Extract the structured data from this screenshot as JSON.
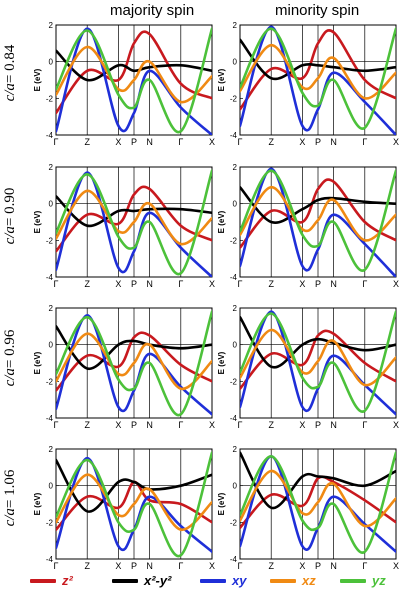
{
  "column_titles": [
    "majority spin",
    "minority spin"
  ],
  "row_labels": [
    {
      "prefix": "c/a",
      "value": "= 0.84"
    },
    {
      "prefix": "c/a",
      "value": "= 0.90"
    },
    {
      "prefix": "c/a",
      "value": "= 0.96"
    },
    {
      "prefix": "c/a",
      "value": "= 1.06"
    }
  ],
  "legend": [
    {
      "label": "z²",
      "color": "#c8191e"
    },
    {
      "label": "x²-y²",
      "color": "#000000"
    },
    {
      "label": "xy",
      "color": "#1f2fd8"
    },
    {
      "label": "xz",
      "color": "#f08a13"
    },
    {
      "label": "yz",
      "color": "#4cc13a"
    }
  ],
  "chart_data": {
    "type": "line",
    "title": "",
    "ylabel": "E (eV)",
    "ylim": [
      -4,
      2
    ],
    "yticks": [
      -4,
      -2,
      0,
      2
    ],
    "kpath": [
      "Γ",
      "Z",
      "X",
      "P",
      "N",
      "Γ",
      "X"
    ],
    "x": [
      0.0,
      1.0,
      2.0,
      2.5,
      3.0,
      4.0,
      5.0
    ],
    "panels": [
      {
        "spin": "majority spin",
        "c_over_a": "0.84",
        "series": [
          {
            "orbital": "z²",
            "values": [
              -2.8,
              -0.5,
              -1.0,
              1.0,
              1.5,
              -1.2,
              -2.0
            ]
          },
          {
            "orbital": "x²-y²",
            "values": [
              0.6,
              -1.0,
              -0.2,
              -0.5,
              -0.3,
              -0.2,
              -0.5
            ]
          },
          {
            "orbital": "xy",
            "values": [
              -3.8,
              1.8,
              -3.5,
              -2.8,
              -0.5,
              -2.5,
              -4.0
            ]
          },
          {
            "orbital": "xz",
            "values": [
              -1.8,
              0.8,
              -1.5,
              -1.0,
              0.0,
              -2.2,
              -0.8
            ]
          },
          {
            "orbital": "yz",
            "values": [
              -1.5,
              1.7,
              -1.8,
              -2.5,
              -1.0,
              -3.8,
              1.8
            ]
          }
        ]
      },
      {
        "spin": "minority spin",
        "c_over_a": "0.84",
        "series": [
          {
            "orbital": "z²",
            "values": [
              -2.6,
              -0.4,
              -0.9,
              1.0,
              1.6,
              -1.0,
              -2.0
            ]
          },
          {
            "orbital": "x²-y²",
            "values": [
              1.2,
              -0.9,
              -0.2,
              -0.2,
              -0.3,
              -0.5,
              -0.3
            ]
          },
          {
            "orbital": "xy",
            "values": [
              -3.5,
              1.9,
              -3.5,
              -2.6,
              -0.6,
              -2.2,
              -4.0
            ]
          },
          {
            "orbital": "xz",
            "values": [
              -1.6,
              0.9,
              -1.4,
              -0.9,
              0.2,
              -2.0,
              -0.6
            ]
          },
          {
            "orbital": "yz",
            "values": [
              -1.4,
              1.8,
              -1.7,
              -2.4,
              -1.0,
              -3.6,
              1.8
            ]
          }
        ]
      },
      {
        "spin": "majority spin",
        "c_over_a": "0.90",
        "series": [
          {
            "orbital": "z²",
            "values": [
              -2.6,
              -0.6,
              -1.1,
              0.5,
              0.8,
              -1.2,
              -2.0
            ]
          },
          {
            "orbital": "x²-y²",
            "values": [
              0.4,
              -1.2,
              -0.4,
              -0.4,
              -0.3,
              -0.3,
              -0.5
            ]
          },
          {
            "orbital": "xy",
            "values": [
              -3.6,
              1.7,
              -3.5,
              -2.6,
              -0.5,
              -2.4,
              -4.0
            ]
          },
          {
            "orbital": "xz",
            "values": [
              -1.9,
              0.7,
              -1.5,
              -1.0,
              0.0,
              -2.2,
              -0.8
            ]
          },
          {
            "orbital": "yz",
            "values": [
              -1.6,
              1.6,
              -1.8,
              -2.4,
              -1.0,
              -3.8,
              1.8
            ]
          }
        ]
      },
      {
        "spin": "minority spin",
        "c_over_a": "0.90",
        "series": [
          {
            "orbital": "z²",
            "values": [
              -2.4,
              -0.4,
              -1.0,
              0.8,
              1.2,
              -1.0,
              -2.0
            ]
          },
          {
            "orbital": "x²-y²",
            "values": [
              0.9,
              -1.0,
              -0.3,
              0.2,
              0.3,
              0.1,
              0.0
            ]
          },
          {
            "orbital": "xy",
            "values": [
              -3.4,
              1.9,
              -3.4,
              -2.5,
              -0.6,
              -2.2,
              -4.0
            ]
          },
          {
            "orbital": "xz",
            "values": [
              -1.7,
              0.9,
              -1.4,
              -0.9,
              0.2,
              -2.0,
              -0.6
            ]
          },
          {
            "orbital": "yz",
            "values": [
              -1.5,
              1.8,
              -1.7,
              -2.3,
              -1.0,
              -3.6,
              1.8
            ]
          }
        ]
      },
      {
        "spin": "majority spin",
        "c_over_a": "0.96",
        "series": [
          {
            "orbital": "z²",
            "values": [
              -2.5,
              -0.6,
              -1.2,
              0.4,
              0.5,
              -1.1,
              -2.0
            ]
          },
          {
            "orbital": "x²-y²",
            "values": [
              1.0,
              -1.3,
              0.0,
              0.2,
              0.0,
              -0.2,
              0.0
            ]
          },
          {
            "orbital": "xy",
            "values": [
              -3.5,
              1.6,
              -3.4,
              -2.5,
              -0.5,
              -2.3,
              -3.8
            ]
          },
          {
            "orbital": "xz",
            "values": [
              -2.0,
              0.6,
              -1.6,
              -1.0,
              0.0,
              -2.4,
              -0.9
            ]
          },
          {
            "orbital": "yz",
            "values": [
              -1.6,
              1.5,
              -1.9,
              -2.4,
              -1.0,
              -3.8,
              1.8
            ]
          }
        ]
      },
      {
        "spin": "minority spin",
        "c_over_a": "0.96",
        "series": [
          {
            "orbital": "z²",
            "values": [
              -2.4,
              -0.5,
              -1.1,
              0.5,
              0.6,
              -1.0,
              -2.0
            ]
          },
          {
            "orbital": "x²-y²",
            "values": [
              1.5,
              -1.2,
              0.0,
              0.3,
              0.1,
              -0.3,
              0.0
            ]
          },
          {
            "orbital": "xy",
            "values": [
              -3.4,
              1.8,
              -3.4,
              -2.4,
              -0.6,
              -2.2,
              -3.8
            ]
          },
          {
            "orbital": "xz",
            "values": [
              -1.8,
              0.8,
              -1.5,
              -0.9,
              0.2,
              -2.2,
              -0.7
            ]
          },
          {
            "orbital": "yz",
            "values": [
              -1.5,
              1.7,
              -1.8,
              -2.3,
              -1.0,
              -3.6,
              1.8
            ]
          }
        ]
      },
      {
        "spin": "majority spin",
        "c_over_a": "1.06",
        "series": [
          {
            "orbital": "z²",
            "values": [
              -2.4,
              -0.6,
              -1.2,
              0.2,
              -0.8,
              -1.0,
              -2.0
            ]
          },
          {
            "orbital": "x²-y²",
            "values": [
              1.4,
              -1.4,
              0.2,
              0.2,
              -0.2,
              0.0,
              0.6
            ]
          },
          {
            "orbital": "xy",
            "values": [
              -3.4,
              1.5,
              -3.3,
              -2.4,
              -0.6,
              -2.2,
              -3.6
            ]
          },
          {
            "orbital": "xz",
            "values": [
              -2.0,
              0.6,
              -1.6,
              -1.0,
              -0.2,
              -2.4,
              -0.9
            ]
          },
          {
            "orbital": "yz",
            "values": [
              -1.7,
              1.4,
              -2.0,
              -2.4,
              -1.0,
              -3.8,
              1.8
            ]
          }
        ]
      },
      {
        "spin": "minority spin",
        "c_over_a": "1.06",
        "series": [
          {
            "orbital": "z²",
            "values": [
              -2.3,
              -0.5,
              -1.1,
              0.4,
              0.2,
              -0.8,
              -2.0
            ]
          },
          {
            "orbital": "x²-y²",
            "values": [
              1.8,
              -1.2,
              0.5,
              0.5,
              0.4,
              0.0,
              0.8
            ]
          },
          {
            "orbital": "xy",
            "values": [
              -3.3,
              1.6,
              -3.3,
              -2.3,
              -0.6,
              -2.1,
              -3.6
            ]
          },
          {
            "orbital": "xz",
            "values": [
              -1.9,
              0.8,
              -1.5,
              -0.9,
              0.1,
              -2.2,
              -0.7
            ]
          },
          {
            "orbital": "yz",
            "values": [
              -1.6,
              1.6,
              -1.9,
              -2.3,
              -1.0,
              -3.6,
              1.8
            ]
          }
        ]
      }
    ]
  }
}
